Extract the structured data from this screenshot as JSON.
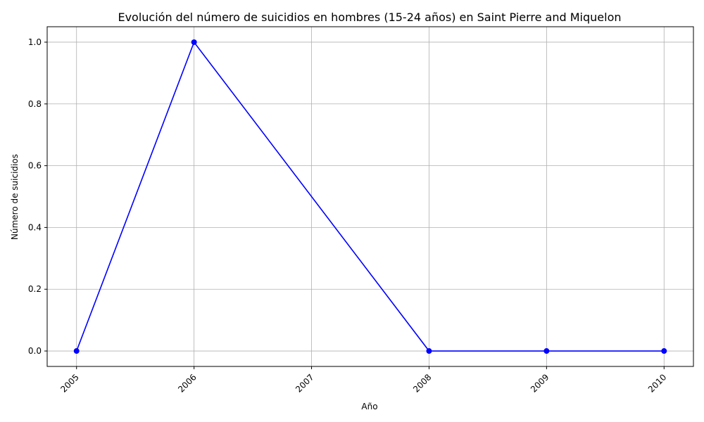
{
  "chart_data": {
    "type": "line",
    "title": "Evolución del número de suicidios en hombres (15-24 años) en Saint Pierre and Miquelon",
    "xlabel": "Año",
    "ylabel": "Número de suicidios",
    "x": [
      2005,
      2006,
      2008,
      2009,
      2010
    ],
    "xticks": [
      "2005",
      "2006",
      "2007",
      "2008",
      "2009",
      "2010"
    ],
    "yticks": [
      "0.0",
      "0.2",
      "0.4",
      "0.6",
      "0.8",
      "1.0"
    ],
    "series": [
      {
        "values": [
          0,
          1,
          0,
          0,
          0
        ],
        "color": "#0000ff",
        "marker": "circle"
      }
    ],
    "xlim": [
      2004.75,
      2010.25
    ],
    "ylim": [
      -0.05,
      1.05
    ],
    "grid": true,
    "xtick_rotation": 45
  }
}
